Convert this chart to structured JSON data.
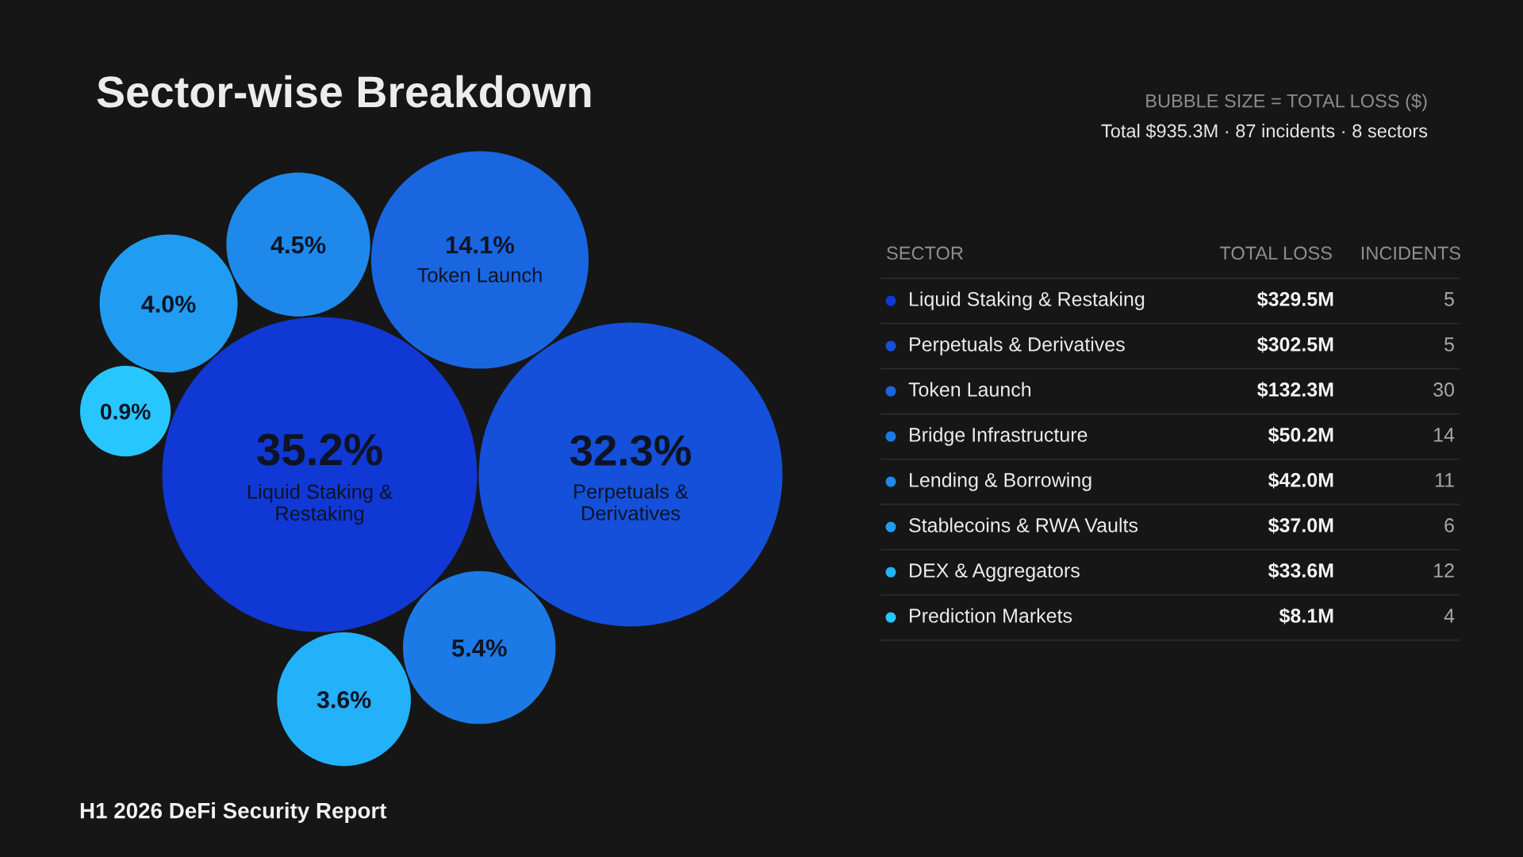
{
  "chart_data": {
    "type": "other",
    "title": "Sector-wise Breakdown",
    "subtitle": "BUBBLE SIZE = TOTAL LOSS ($)",
    "annotations": [
      "Total $935.3M · 87 incidents · 8 sectors",
      "H1 2026 DeFi Security Report",
      "35.2%",
      "32.3%",
      "14.1%",
      "5.4%",
      "4.5%",
      "4.0%",
      "3.6%",
      "0.9%"
    ],
    "legend_title": "SECTOR",
    "categories": [
      "Liquid Staking & Restaking",
      "Perpetuals & Derivatives",
      "Token Launch",
      "Bridge Infrastructure",
      "Lending & Borrowing",
      "Stablecoins & RWA Vaults",
      "DEX & Aggregators",
      "Prediction Markets"
    ],
    "colors": [
      "#1038d4",
      "#1450da",
      "#1966e0",
      "#1b7ae6",
      "#1e89eb",
      "#209df2",
      "#23b1f9",
      "#28c6ff"
    ],
    "series": [
      {
        "name": "TOTAL LOSS",
        "values": [
          329.5,
          302.5,
          132.3,
          50.2,
          42.0,
          37.0,
          33.6,
          8.1
        ],
        "value_labels": [
          "$329.5M",
          "$302.5M",
          "$132.3M",
          "$50.2M",
          "$42.0M",
          "$37.0M",
          "$33.6M",
          "$8.1M"
        ]
      },
      {
        "name": "INCIDENTS",
        "values": [
          5,
          5,
          30,
          14,
          11,
          6,
          12,
          4
        ]
      }
    ],
    "data_labels": true
  }
}
